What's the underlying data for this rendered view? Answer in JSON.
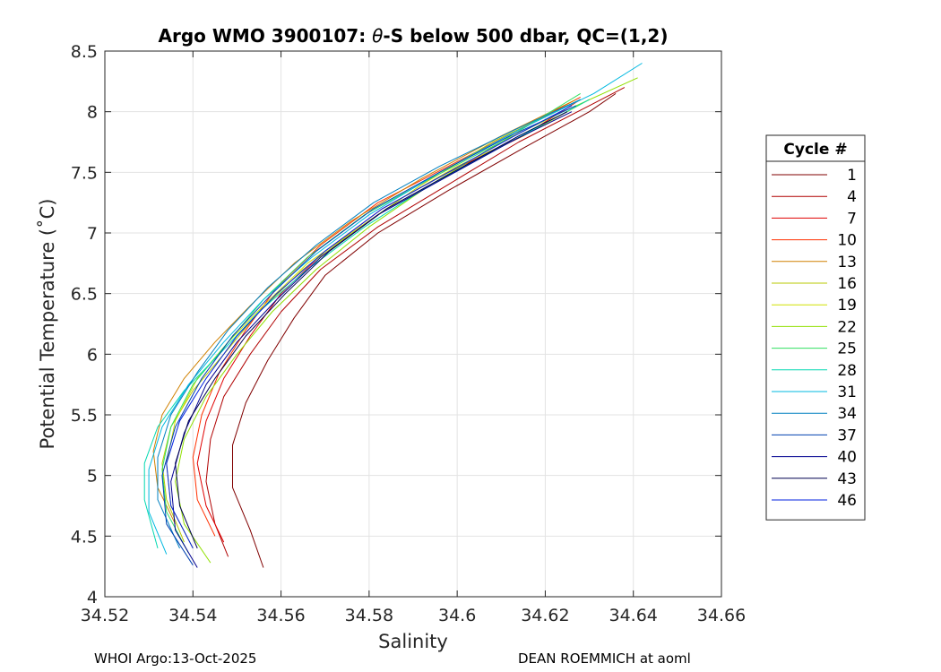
{
  "chart_data": {
    "type": "line",
    "title_prefix": "Argo WMO 3900107: ",
    "title_symbol": "θ",
    "title_suffix": "-S below 500 dbar,  QC=(1,2)",
    "xlabel": "Salinity",
    "ylabel": "Potential Temperature (˚C)",
    "xlim": [
      34.52,
      34.66
    ],
    "ylim": [
      4,
      8.5
    ],
    "xticks": [
      34.52,
      34.54,
      34.56,
      34.58,
      34.6,
      34.62,
      34.64,
      34.66
    ],
    "xtick_labels": [
      "34.52",
      "34.54",
      "34.56",
      "34.58",
      "34.6",
      "34.62",
      "34.64",
      "34.66"
    ],
    "yticks": [
      4,
      4.5,
      5,
      5.5,
      6,
      6.5,
      7,
      7.5,
      8,
      8.5
    ],
    "ytick_labels": [
      "4",
      "4.5",
      "5",
      "5.5",
      "6",
      "6.5",
      "7",
      "7.5",
      "8",
      "8.5"
    ],
    "grid": true,
    "legend_title": "Cycle #",
    "legend_position": "outside-right",
    "series": [
      {
        "name": "1",
        "color": "#800000",
        "x": [
          34.556,
          34.553,
          34.549,
          34.549,
          34.552,
          34.557,
          34.563,
          34.57,
          34.582,
          34.598,
          34.615,
          34.63,
          34.636
        ],
        "y": [
          4.24,
          4.55,
          4.9,
          5.25,
          5.6,
          5.95,
          6.3,
          6.65,
          7.0,
          7.35,
          7.7,
          8.0,
          8.15
        ]
      },
      {
        "name": "4",
        "color": "#b00000",
        "x": [
          34.548,
          34.545,
          34.543,
          34.544,
          34.547,
          34.553,
          34.56,
          34.569,
          34.582,
          34.598,
          34.614,
          34.63,
          34.638
        ],
        "y": [
          4.33,
          4.6,
          4.95,
          5.3,
          5.65,
          6.0,
          6.35,
          6.7,
          7.05,
          7.4,
          7.75,
          8.05,
          8.2
        ]
      },
      {
        "name": "7",
        "color": "#e00000",
        "x": [
          34.547,
          34.543,
          34.541,
          34.543,
          34.547,
          34.553,
          34.56,
          34.57,
          34.583,
          34.598,
          34.615,
          34.628
        ],
        "y": [
          4.45,
          4.75,
          5.1,
          5.45,
          5.8,
          6.15,
          6.5,
          6.85,
          7.2,
          7.5,
          7.8,
          8.1
        ]
      },
      {
        "name": "10",
        "color": "#ff3000",
        "x": [
          34.545,
          34.541,
          34.54,
          34.542,
          34.546,
          34.552,
          34.559,
          34.569,
          34.582,
          34.598,
          34.614,
          34.628
        ],
        "y": [
          4.5,
          4.8,
          5.15,
          5.5,
          5.85,
          6.2,
          6.55,
          6.9,
          7.25,
          7.55,
          7.85,
          8.12
        ]
      },
      {
        "name": "13",
        "color": "#d08000",
        "x": [
          34.536,
          34.532,
          34.531,
          34.533,
          34.538,
          34.545,
          34.553,
          34.563,
          34.576,
          34.592,
          34.61,
          34.627
        ],
        "y": [
          4.6,
          4.9,
          5.2,
          5.5,
          5.8,
          6.1,
          6.4,
          6.75,
          7.1,
          7.45,
          7.8,
          8.1
        ]
      },
      {
        "name": "16",
        "color": "#b8c800",
        "x": [
          34.538,
          34.534,
          34.533,
          34.535,
          34.54,
          34.547,
          34.555,
          34.565,
          34.578,
          34.592,
          34.608,
          34.625
        ],
        "y": [
          4.45,
          4.8,
          5.1,
          5.4,
          5.7,
          6.0,
          6.35,
          6.7,
          7.05,
          7.4,
          7.75,
          8.05
        ]
      },
      {
        "name": "19",
        "color": "#d0e000",
        "x": [
          34.54,
          34.535,
          34.534,
          34.536,
          34.541,
          34.548,
          34.556,
          34.566,
          34.578,
          34.588,
          34.6,
          34.615,
          34.63
        ],
        "y": [
          4.4,
          4.75,
          5.1,
          5.45,
          5.8,
          6.1,
          6.4,
          6.75,
          7.05,
          7.3,
          7.55,
          7.8,
          8.1
        ]
      },
      {
        "name": "22",
        "color": "#90e000",
        "x": [
          34.544,
          34.538,
          34.536,
          34.538,
          34.543,
          34.55,
          34.558,
          34.568,
          34.58,
          34.594,
          34.61,
          34.624,
          34.641
        ],
        "y": [
          4.28,
          4.6,
          4.95,
          5.3,
          5.65,
          6.0,
          6.35,
          6.7,
          7.05,
          7.4,
          7.75,
          8.0,
          8.28
        ]
      },
      {
        "name": "25",
        "color": "#30e060",
        "x": [
          34.539,
          34.534,
          34.533,
          34.535,
          34.54,
          34.548,
          34.556,
          34.566,
          34.579,
          34.594,
          34.61,
          34.628
        ],
        "y": [
          4.36,
          4.7,
          5.05,
          5.4,
          5.75,
          6.1,
          6.45,
          6.8,
          7.15,
          7.45,
          7.75,
          8.15
        ]
      },
      {
        "name": "28",
        "color": "#00d8b0",
        "x": [
          34.532,
          34.529,
          34.529,
          34.532,
          34.538,
          34.546,
          34.555,
          34.566,
          34.579,
          34.594,
          34.612,
          34.63
        ],
        "y": [
          4.4,
          4.8,
          5.1,
          5.4,
          5.7,
          6.0,
          6.35,
          6.7,
          7.05,
          7.4,
          7.75,
          8.1
        ]
      },
      {
        "name": "31",
        "color": "#00b8e0",
        "x": [
          34.534,
          34.53,
          34.53,
          34.533,
          34.539,
          34.547,
          34.556,
          34.567,
          34.58,
          34.596,
          34.614,
          34.631,
          34.642
        ],
        "y": [
          4.35,
          4.7,
          5.05,
          5.4,
          5.75,
          6.1,
          6.45,
          6.8,
          7.15,
          7.5,
          7.85,
          8.15,
          8.4
        ]
      },
      {
        "name": "34",
        "color": "#0080c0",
        "x": [
          34.537,
          34.532,
          34.532,
          34.535,
          34.541,
          34.548,
          34.557,
          34.568,
          34.581,
          34.596,
          34.613,
          34.628
        ],
        "y": [
          4.4,
          4.8,
          5.15,
          5.5,
          5.85,
          6.2,
          6.55,
          6.9,
          7.25,
          7.55,
          7.85,
          8.1
        ]
      },
      {
        "name": "37",
        "color": "#0040b0",
        "x": [
          34.54,
          34.534,
          34.533,
          34.536,
          34.542,
          34.549,
          34.558,
          34.568,
          34.581,
          34.596,
          34.612,
          34.627
        ],
        "y": [
          4.26,
          4.6,
          5.0,
          5.4,
          5.8,
          6.15,
          6.5,
          6.85,
          7.2,
          7.5,
          7.8,
          8.05
        ]
      },
      {
        "name": "40",
        "color": "#000090",
        "x": [
          34.541,
          34.536,
          34.535,
          34.538,
          34.543,
          34.55,
          34.559,
          34.569,
          34.582,
          34.597,
          34.612,
          34.626
        ],
        "y": [
          4.24,
          4.55,
          4.95,
          5.35,
          5.75,
          6.1,
          6.45,
          6.8,
          7.15,
          7.45,
          7.75,
          8.0
        ]
      },
      {
        "name": "43",
        "color": "#000050",
        "x": [
          34.541,
          34.537,
          34.536,
          34.539,
          34.545,
          34.552,
          34.561,
          34.571,
          34.584,
          34.599,
          34.614,
          34.625
        ],
        "y": [
          4.4,
          4.75,
          5.1,
          5.45,
          5.8,
          6.15,
          6.5,
          6.85,
          7.2,
          7.5,
          7.8,
          8.0
        ]
      },
      {
        "name": "46",
        "color": "#0020e0",
        "x": [
          34.54,
          34.535,
          34.534,
          34.537,
          34.543,
          34.55,
          34.559,
          34.57,
          34.583,
          34.598,
          34.613,
          34.626
        ],
        "y": [
          4.4,
          4.75,
          5.1,
          5.45,
          5.8,
          6.15,
          6.5,
          6.85,
          7.2,
          7.5,
          7.8,
          8.05
        ]
      }
    ]
  },
  "footer": {
    "left": "WHOI Argo:13-Oct-2025",
    "right": "DEAN ROEMMICH at aoml"
  }
}
